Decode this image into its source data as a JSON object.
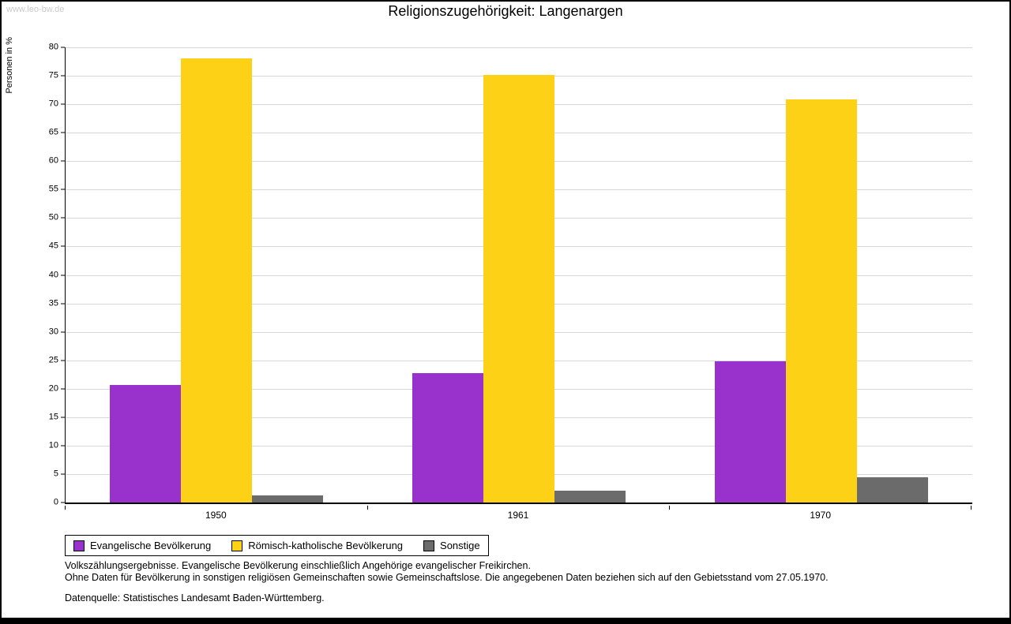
{
  "watermark": "www.leo-bw.de",
  "title": "Religionszugehörigkeit: Langenargen",
  "chart_data": {
    "type": "bar",
    "title": "Religionszugehörigkeit: Langenargen",
    "xlabel": "",
    "ylabel": "Personen in %",
    "ylim": [
      0,
      80
    ],
    "ytick_step": 5,
    "grid": true,
    "legend_position": "bottom-left",
    "categories": [
      "1950",
      "1961",
      "1970"
    ],
    "series": [
      {
        "name": "Evangelische Bevölkerung",
        "color": "#9932CC",
        "values": [
          20.7,
          22.7,
          24.8
        ]
      },
      {
        "name": "Römisch-katholische Bevölkerung",
        "color": "#FCD116",
        "values": [
          78.0,
          75.2,
          70.8
        ]
      },
      {
        "name": "Sonstige",
        "color": "#6B6B6B",
        "values": [
          1.3,
          2.1,
          4.5
        ]
      }
    ]
  },
  "notes": {
    "line1": "Volkszählungsergebnisse. Evangelische Bevölkerung einschließlich Angehörige evangelischer Freikirchen.",
    "line2": "Ohne Daten für Bevölkerung in sonstigen religiösen Gemeinschaften sowie Gemeinschaftslose. Die angegebenen Daten beziehen sich auf den Gebietsstand vom 27.05.1970.",
    "source": "Datenquelle: Statistisches Landesamt Baden-Württemberg."
  }
}
